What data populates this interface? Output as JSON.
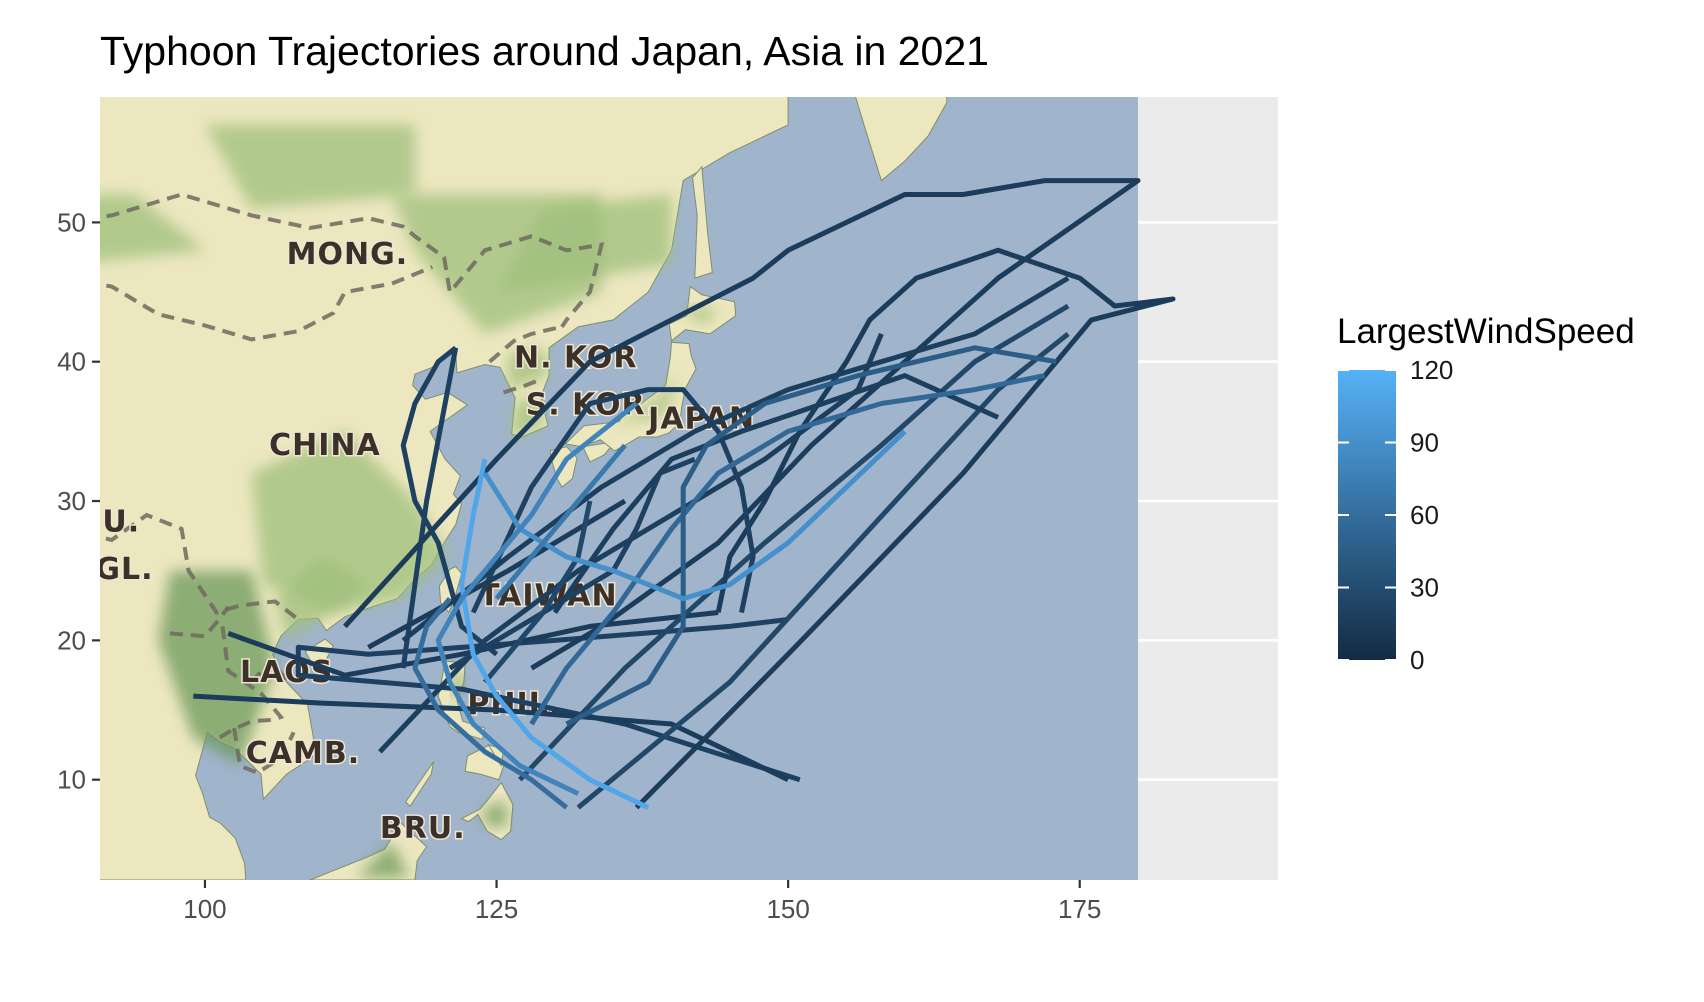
{
  "title": "Typhoon Trajectories around Japan, Asia in 2021",
  "colors": {
    "panel_background": "#ebebeb",
    "grid": "#ffffff",
    "ocean": "#a0b4cc",
    "land_light": "#ece7bf",
    "land_green": "#9fbf7b",
    "land_dark_green": "#6c9a5c",
    "border_dash": "#6f6a5e",
    "axis_text": "#4d4d4d",
    "low_wind": "#132b43",
    "high_wind": "#56b1f7"
  },
  "basemap": {
    "labels": [
      {
        "text": "MONG.",
        "lon": 107,
        "lat": 47
      },
      {
        "text": "CHINA",
        "lon": 105.5,
        "lat": 33.3
      },
      {
        "text": "N. KOR",
        "lon": 126.5,
        "lat": 39.6
      },
      {
        "text": "S. KOR.",
        "lon": 127.5,
        "lat": 36.2
      },
      {
        "text": "JAPAN",
        "lon": 138,
        "lat": 35.2
      },
      {
        "text": "TAIWAN",
        "lon": 123.5,
        "lat": 22.5
      },
      {
        "text": "LAOS",
        "lon": 103,
        "lat": 17
      },
      {
        "text": "PHIL.",
        "lon": 122.5,
        "lat": 14.7
      },
      {
        "text": "CAMB.",
        "lon": 103.5,
        "lat": 11.2
      },
      {
        "text": "BRU.",
        "lon": 115,
        "lat": 5.8
      },
      {
        "text": "U.",
        "lon": 91.2,
        "lat": 27.8
      },
      {
        "text": "GL.",
        "lon": 90.6,
        "lat": 24.4
      }
    ]
  },
  "chart_data": {
    "type": "line",
    "title": "Typhoon Trajectories around Japan, Asia in 2021",
    "xlabel": "",
    "ylabel": "",
    "xlim": [
      91,
      192
    ],
    "ylim": [
      2.8,
      59
    ],
    "x_ticks": [
      100,
      125,
      150,
      175
    ],
    "y_ticks": [
      10,
      20,
      30,
      40,
      50
    ],
    "grid": true,
    "map_extent_lon": [
      91,
      180
    ],
    "color_scale": {
      "title": "LargestWindSpeed",
      "min": 0,
      "max": 120,
      "breaks": [
        0,
        30,
        60,
        90,
        120
      ],
      "low_color": "#132b43",
      "high_color": "#56b1f7"
    },
    "legend_position": "right",
    "tracks": [
      {
        "wind": 20,
        "points": [
          [
            151,
            10
          ],
          [
            136,
            14
          ],
          [
            122,
            16.5
          ],
          [
            108,
            17.5
          ],
          [
            108,
            19.5
          ],
          [
            114,
            19
          ],
          [
            130,
            20
          ],
          [
            145,
            21
          ],
          [
            150,
            21.5
          ]
        ]
      },
      {
        "wind": 15,
        "points": [
          [
            99,
            16
          ],
          [
            110,
            15.5
          ],
          [
            125,
            15
          ],
          [
            140,
            14
          ],
          [
            150,
            10
          ]
        ]
      },
      {
        "wind": 15,
        "points": [
          [
            102,
            20.5
          ],
          [
            112,
            17.5
          ],
          [
            122,
            19
          ],
          [
            133,
            21
          ],
          [
            144,
            22
          ]
        ]
      },
      {
        "wind": 18,
        "points": [
          [
            115,
            12
          ],
          [
            124,
            20
          ],
          [
            132,
            25
          ],
          [
            140,
            29
          ],
          [
            148,
            33
          ],
          [
            156,
            38
          ],
          [
            158,
            42
          ]
        ]
      },
      {
        "wind": 20,
        "points": [
          [
            121.5,
            41
          ],
          [
            120,
            40
          ],
          [
            118,
            37
          ],
          [
            117,
            34
          ],
          [
            118,
            30
          ],
          [
            120,
            27
          ],
          [
            121,
            24
          ],
          [
            122,
            21
          ],
          [
            125,
            19
          ]
        ]
      },
      {
        "wind": 20,
        "points": [
          [
            121.5,
            41
          ],
          [
            119,
            30
          ],
          [
            117,
            18
          ]
        ]
      },
      {
        "wind": 25,
        "points": [
          [
            127,
            10
          ],
          [
            136,
            18
          ],
          [
            148,
            27
          ],
          [
            158,
            34
          ],
          [
            166,
            40
          ],
          [
            174,
            44
          ]
        ]
      },
      {
        "wind": 25,
        "points": [
          [
            132,
            8
          ],
          [
            145,
            17
          ],
          [
            157,
            28
          ],
          [
            168,
            38
          ],
          [
            174,
            42
          ]
        ]
      },
      {
        "wind": 15,
        "points": [
          [
            137,
            8
          ],
          [
            150,
            19
          ],
          [
            165,
            32
          ],
          [
            176,
            43
          ],
          [
            183,
            44.5
          ],
          [
            178,
            44
          ],
          [
            175,
            46
          ],
          [
            168,
            48
          ],
          [
            161,
            46
          ],
          [
            157,
            43
          ],
          [
            155,
            40
          ],
          [
            151,
            35
          ],
          [
            148,
            30
          ],
          [
            145,
            26
          ],
          [
            144,
            22
          ]
        ]
      },
      {
        "wind": 15,
        "points": [
          [
            112,
            21
          ],
          [
            125,
            33
          ],
          [
            133,
            40
          ],
          [
            140,
            43
          ],
          [
            147,
            46
          ],
          [
            150,
            48
          ],
          [
            155,
            50
          ],
          [
            160,
            52
          ],
          [
            165,
            52
          ],
          [
            172,
            53
          ],
          [
            180,
            53
          ],
          [
            168,
            46
          ],
          [
            160,
            40
          ],
          [
            152,
            34
          ],
          [
            144,
            27
          ],
          [
            134,
            21
          ],
          [
            128,
            18
          ]
        ]
      },
      {
        "wind": 20,
        "points": [
          [
            123,
            22
          ],
          [
            128,
            31
          ],
          [
            133,
            37
          ],
          [
            138,
            38
          ],
          [
            141,
            38
          ],
          [
            144,
            35
          ],
          [
            146,
            31
          ],
          [
            147,
            26
          ],
          [
            146,
            22
          ]
        ]
      },
      {
        "wind": 18,
        "points": [
          [
            117,
            20
          ],
          [
            126,
            26
          ],
          [
            134,
            31
          ],
          [
            142,
            35
          ],
          [
            150,
            38
          ],
          [
            158,
            40
          ],
          [
            166,
            42
          ],
          [
            174,
            46
          ]
        ]
      },
      {
        "wind": 15,
        "points": [
          [
            114,
            19.5
          ],
          [
            126,
            25
          ],
          [
            136,
            30
          ]
        ]
      },
      {
        "wind": 20,
        "points": [
          [
            121,
            18
          ],
          [
            129,
            22
          ],
          [
            135,
            25
          ],
          [
            137,
            28
          ],
          [
            139,
            32
          ],
          [
            142,
            33
          ]
        ]
      },
      {
        "wind": 18,
        "points": [
          [
            130,
            22
          ],
          [
            135,
            28
          ],
          [
            140,
            33
          ],
          [
            146,
            35
          ],
          [
            153,
            37
          ],
          [
            160,
            39
          ],
          [
            168,
            36
          ]
        ]
      },
      {
        "wind": 25,
        "points": [
          [
            124,
            17
          ],
          [
            129,
            22
          ],
          [
            132,
            26
          ],
          [
            133,
            30
          ]
        ]
      },
      {
        "wind": 55,
        "points": [
          [
            128,
            14
          ],
          [
            131,
            18
          ],
          [
            135,
            22
          ],
          [
            140,
            28
          ],
          [
            144,
            32
          ],
          [
            150,
            35
          ],
          [
            158,
            37
          ],
          [
            166,
            38
          ],
          [
            172,
            39
          ]
        ]
      },
      {
        "wind": 45,
        "points": [
          [
            131,
            14
          ],
          [
            138,
            17
          ],
          [
            141,
            21
          ],
          [
            141,
            26
          ],
          [
            141,
            31
          ],
          [
            143,
            34
          ],
          [
            148,
            37
          ],
          [
            156,
            39
          ],
          [
            166,
            41
          ],
          [
            173,
            40
          ]
        ]
      },
      {
        "wind": 110,
        "points": [
          [
            138,
            8
          ],
          [
            133,
            10
          ],
          [
            128,
            13
          ],
          [
            125,
            16
          ],
          [
            123,
            19
          ],
          [
            122,
            24
          ],
          [
            123,
            29
          ],
          [
            124,
            33
          ]
        ]
      },
      {
        "wind": 90,
        "points": [
          [
            124,
            32
          ],
          [
            127,
            28
          ],
          [
            131,
            26
          ],
          [
            135,
            25
          ],
          [
            138,
            24
          ],
          [
            141,
            23
          ],
          [
            145,
            24
          ],
          [
            150,
            27
          ],
          [
            155,
            31
          ],
          [
            160,
            35
          ]
        ]
      },
      {
        "wind": 80,
        "points": [
          [
            132,
            9
          ],
          [
            127,
            11
          ],
          [
            123,
            14
          ],
          [
            121,
            17
          ],
          [
            120,
            20
          ],
          [
            122,
            23
          ],
          [
            125,
            26
          ],
          [
            128,
            29
          ],
          [
            131,
            33
          ],
          [
            134,
            35
          ],
          [
            137,
            37
          ]
        ]
      },
      {
        "wind": 70,
        "points": [
          [
            125,
            23
          ],
          [
            128,
            26
          ],
          [
            131,
            29
          ],
          [
            133,
            31
          ],
          [
            135,
            33
          ],
          [
            136,
            34
          ]
        ]
      },
      {
        "wind": 60,
        "points": [
          [
            131,
            8
          ],
          [
            128,
            10
          ],
          [
            124,
            12
          ],
          [
            120,
            15
          ],
          [
            118,
            18
          ],
          [
            119,
            21
          ],
          [
            121,
            23
          ]
        ]
      }
    ]
  }
}
